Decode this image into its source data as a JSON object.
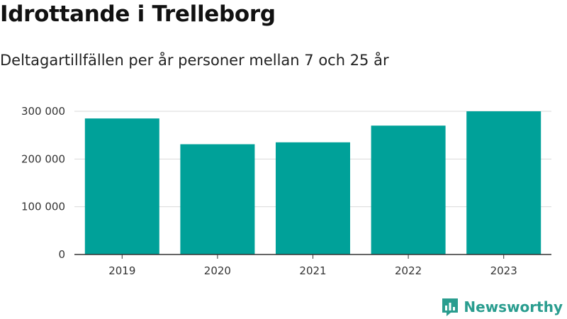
{
  "header": {
    "title": "Idrottande i Trelleborg",
    "subtitle": "Deltagartillfällen per år personer mellan 7 och 25 år"
  },
  "branding": {
    "name": "Newsworthy",
    "icon": "newsworthy-logo-icon",
    "color": "#2a9d8f"
  },
  "colors": {
    "bar": "#00a199",
    "grid": "#d9d9d9",
    "axis": "#333333"
  },
  "chart_data": {
    "type": "bar",
    "title": "Idrottande i Trelleborg",
    "subtitle": "Deltagartillfällen per år personer mellan 7 och 25 år",
    "categories": [
      "2019",
      "2020",
      "2021",
      "2022",
      "2023"
    ],
    "values": [
      285000,
      231000,
      235000,
      270000,
      300000
    ],
    "xlabel": "",
    "ylabel": "",
    "ylim": [
      0,
      300000
    ],
    "yticks": [
      0,
      100000,
      200000,
      300000
    ],
    "ytick_labels": [
      "0",
      "100 000",
      "200 000",
      "300 000"
    ],
    "grid": true,
    "legend": "none"
  }
}
